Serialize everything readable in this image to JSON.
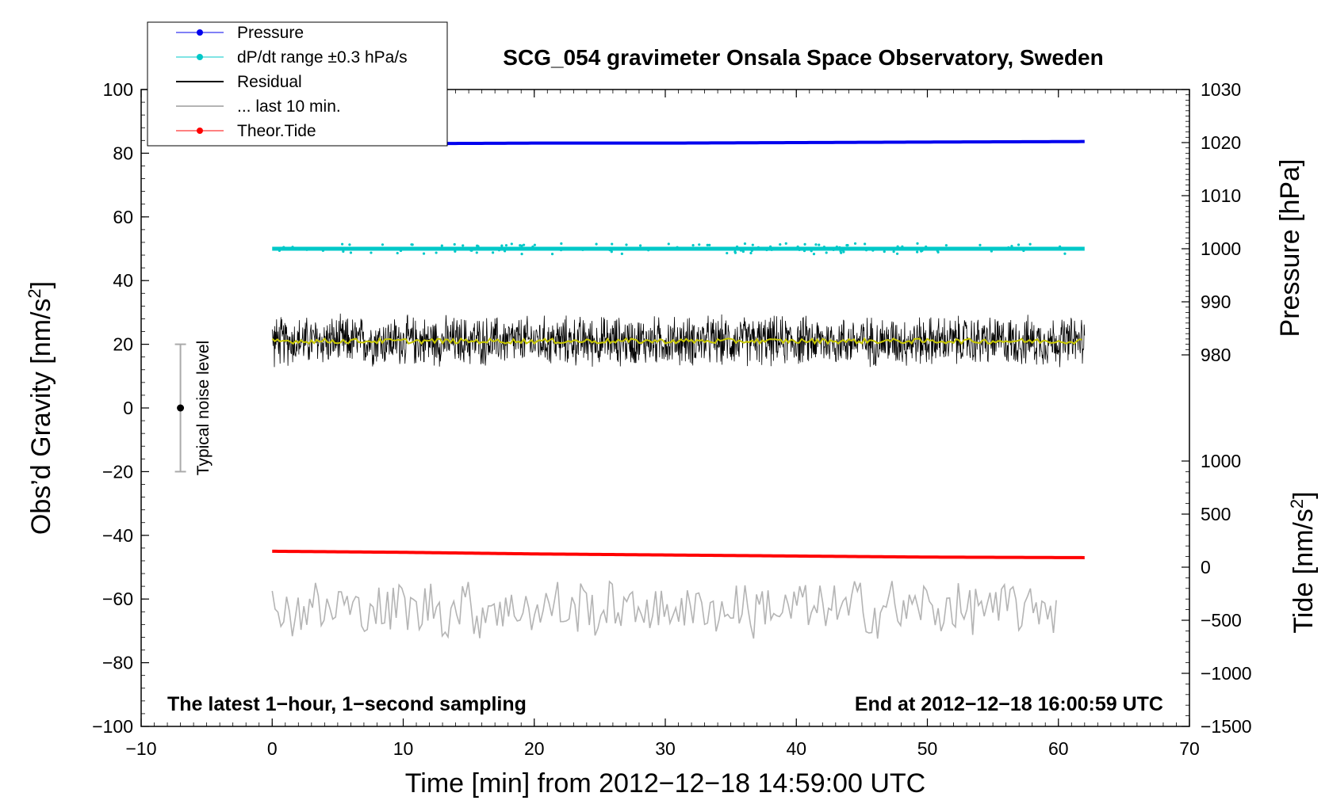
{
  "chart_data": {
    "type": "line",
    "title": "SCG_054 gravimeter Onsala Space Observatory, Sweden",
    "xlabel": "Time [min] from 2012−12−18 14:59:00 UTC",
    "ylabel_left_main": "Obs’d Gravity [nm/s",
    "ylabel_left_sup": "2",
    "ylabel_left_end": "]",
    "ylabel_right_pressure": "Pressure [hPa]",
    "ylabel_right_tide_main": "Tide [nm/s",
    "ylabel_right_tide_sup": "2",
    "ylabel_right_tide_end": "]",
    "xlim": [
      -10,
      70
    ],
    "ylim": [
      -100,
      100
    ],
    "pressure_axis_range": [
      980,
      1030
    ],
    "tide_axis_range": [
      -1500,
      1000
    ],
    "x_ticks": [
      "−10",
      "0",
      "10",
      "20",
      "30",
      "40",
      "50",
      "60",
      "70"
    ],
    "y_ticks": [
      "100",
      "80",
      "60",
      "40",
      "20",
      "0",
      "−20",
      "−40",
      "−60",
      "−80",
      "−100"
    ],
    "pressure_ticks": [
      "1030",
      "1020",
      "1010",
      "1000",
      "990",
      "980"
    ],
    "tide_ticks": [
      "1000",
      "500",
      "0",
      "−500",
      "−1000",
      "−1500"
    ],
    "footer_left": "The latest 1−hour, 1−second sampling",
    "footer_right": "End at 2012−12−18 16:00:59 UTC",
    "noise_label": "Typical noise level",
    "noise_bar": {
      "x": -7,
      "center": 0,
      "low": -20,
      "high": 20
    },
    "legend": [
      {
        "label": "Pressure",
        "color": "#0000ee",
        "marker": true
      },
      {
        "label": "dP/dt range ±0.3 hPa/s",
        "color": "#00c8c8",
        "marker": true
      },
      {
        "label": "Residual",
        "color": "#000000",
        "marker": false
      },
      {
        "label": "... last 10 min.",
        "color": "#b4b4b4",
        "marker": false
      },
      {
        "label": "Theor.Tide",
        "color": "#ff0000",
        "marker": true
      }
    ],
    "series": [
      {
        "name": "Pressure",
        "color": "#0000ee",
        "axis": "pressure_hPa",
        "x": [
          0,
          10,
          20,
          30,
          40,
          50,
          62
        ],
        "values": [
          1019.7,
          1019.8,
          1019.9,
          1019.9,
          1020.0,
          1020.1,
          1020.2
        ]
      },
      {
        "name": "dP/dt range ±0.3 hPa/s",
        "color": "#00c8c8",
        "axis": "pressure_hPa",
        "x": [
          0,
          62
        ],
        "values": [
          1000,
          1000
        ],
        "scatter_range": 1.0
      },
      {
        "name": "Residual",
        "color": "#000000",
        "axis": "gravity",
        "x": [
          0,
          62
        ],
        "values": [
          21,
          21
        ],
        "noise_range": 9
      },
      {
        "name": "... last 10 min.",
        "color": "#b4b4b4",
        "axis": "gravity",
        "x": [
          0,
          60
        ],
        "values": [
          -63,
          -63
        ],
        "noise_range": 8
      },
      {
        "name": "Theor.Tide",
        "color": "#ff0000",
        "axis": "tide",
        "x": [
          0,
          10,
          20,
          30,
          40,
          50,
          62
        ],
        "values": [
          150,
          140,
          125,
          115,
          105,
          95,
          90
        ]
      }
    ]
  }
}
